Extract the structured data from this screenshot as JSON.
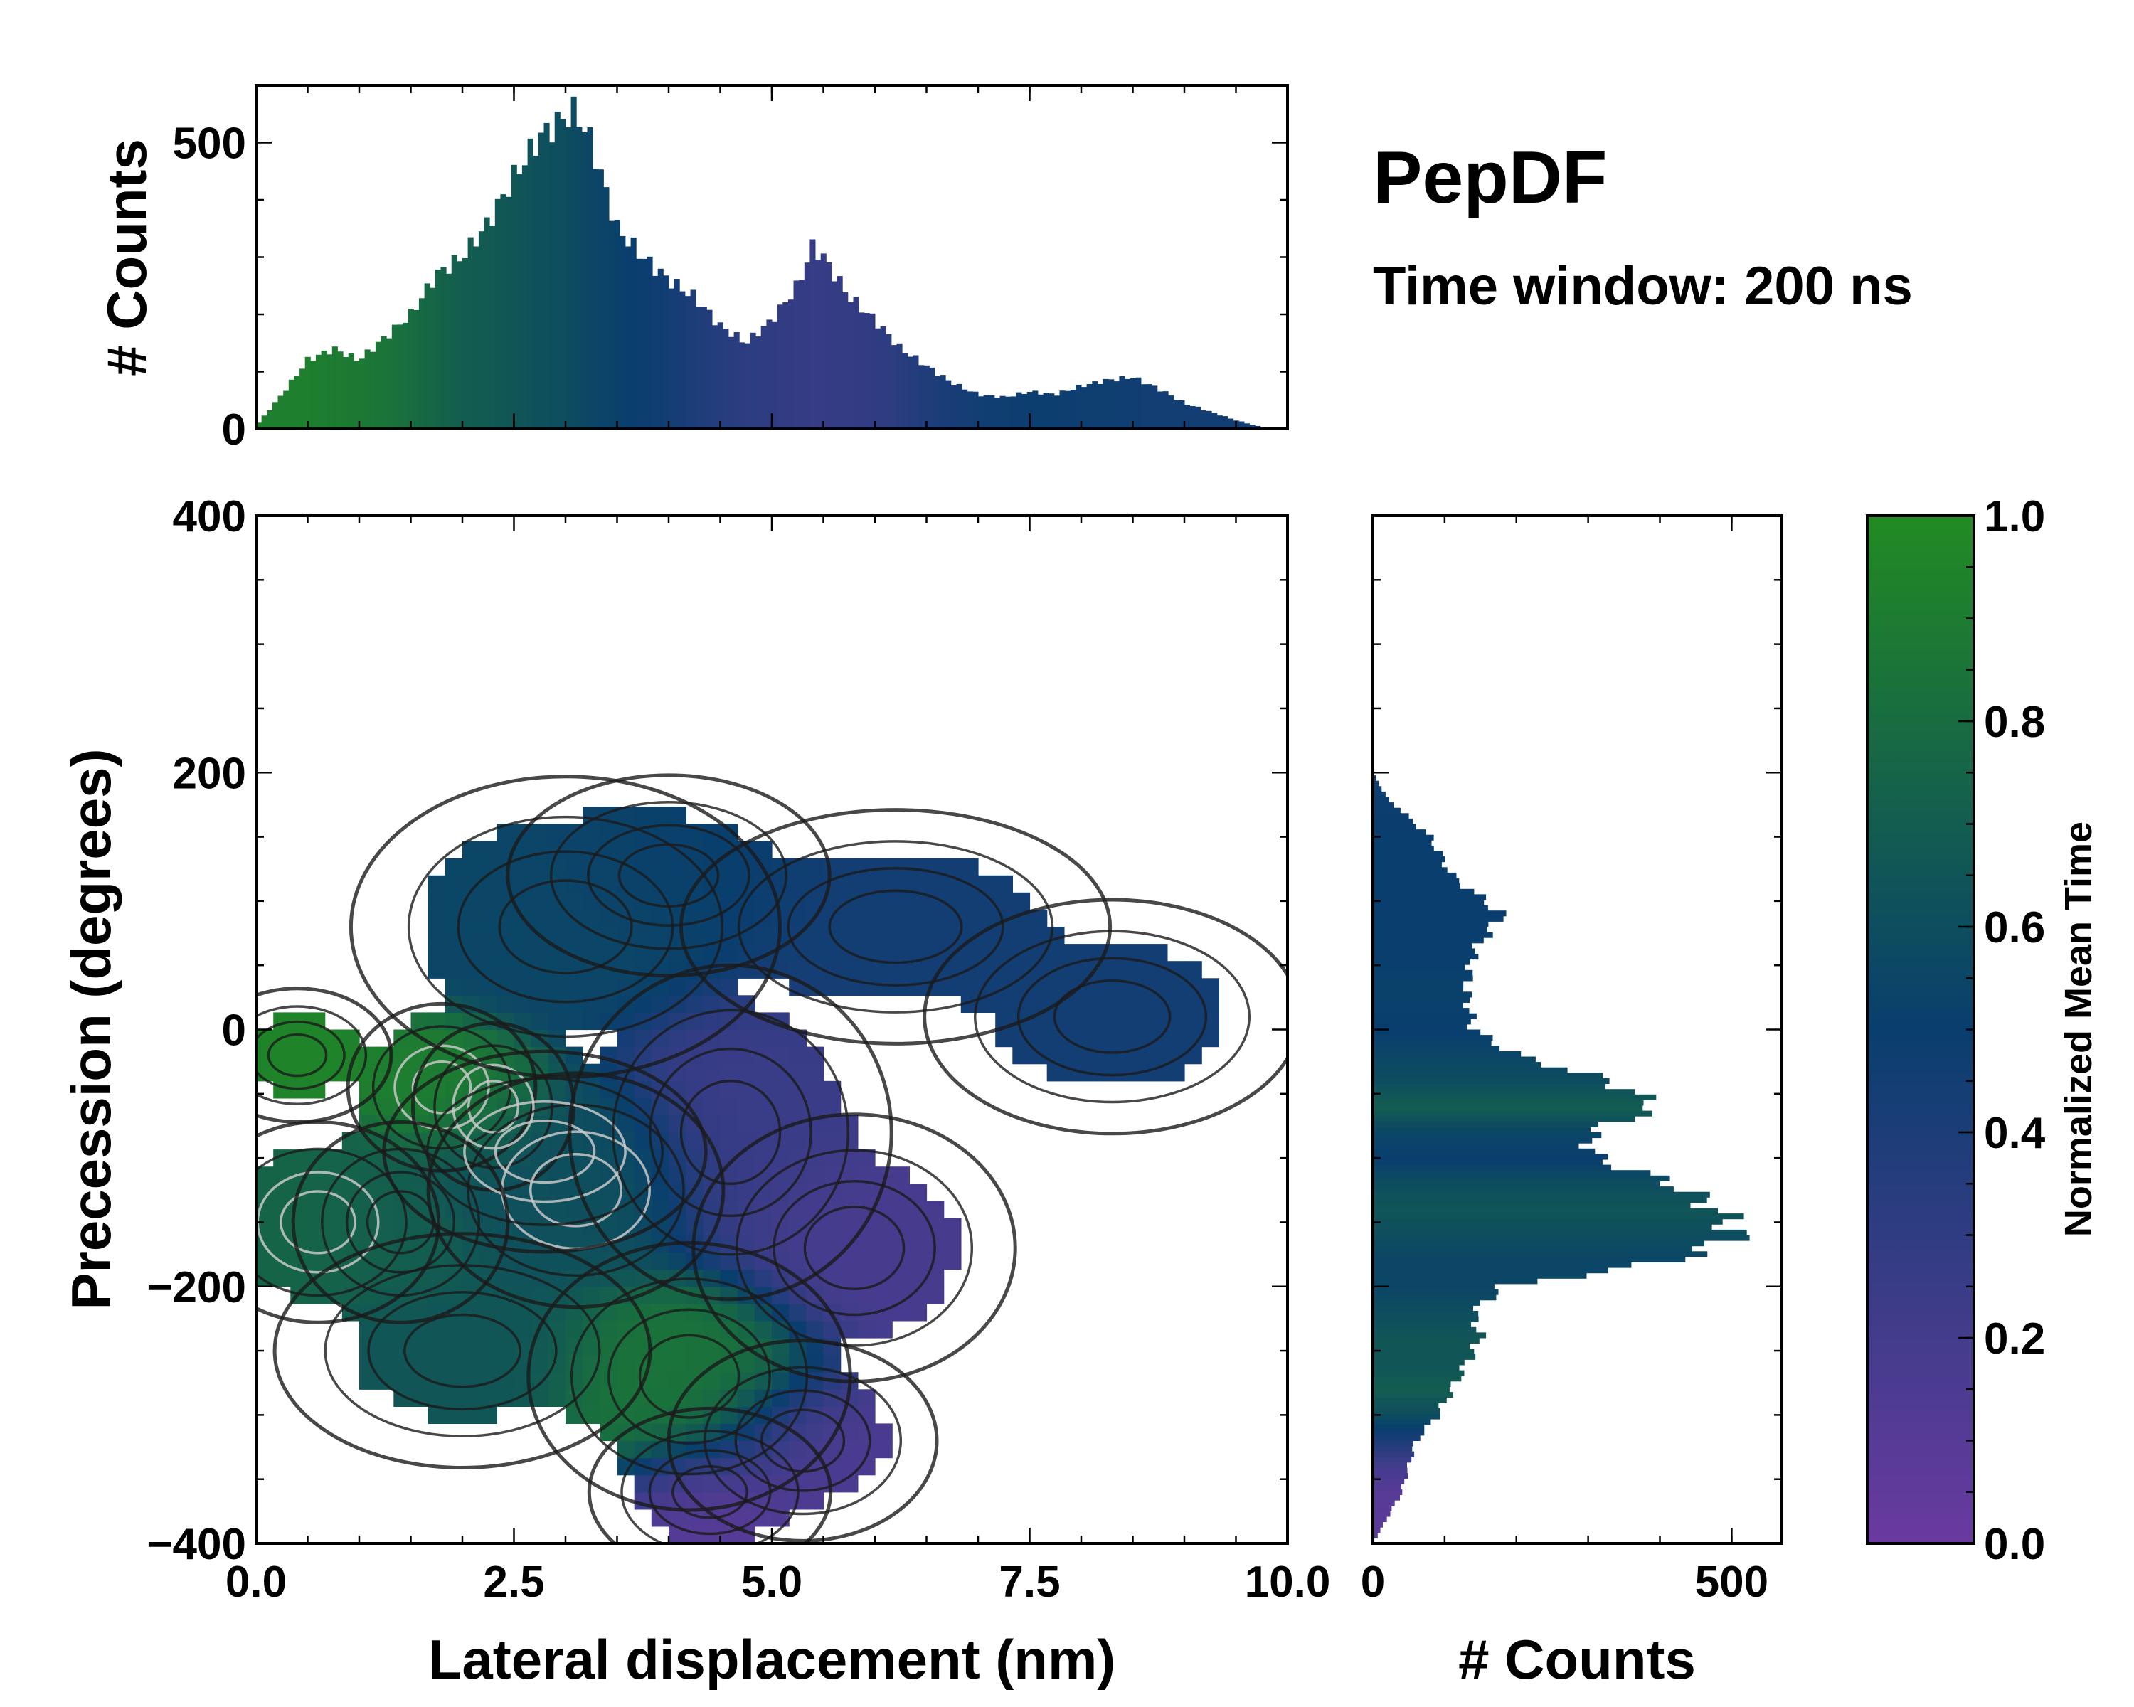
{
  "title": "PepDF",
  "subtitle": "Time window: 200 ns",
  "colors": {
    "cmap_low": "#6a3aa0",
    "cmap_mid": "#093e6e",
    "cmap_high": "#228b22",
    "contour": "#1a1a1a",
    "contour_inner": "#c8c8c8"
  },
  "chart_data": [
    {
      "type": "heatmap",
      "name": "joint-distribution",
      "xlabel": "Lateral displacement (nm)",
      "ylabel": "Precession (degrees)",
      "xlim": [
        0,
        10
      ],
      "ylim": [
        -400,
        400
      ],
      "xticks": [
        0,
        2.5,
        5,
        7.5,
        10
      ],
      "xtick_labels": [
        "0.0",
        "2.5",
        "5.0",
        "7.5",
        "10.0"
      ],
      "yticks": [
        -400,
        -200,
        0,
        200,
        400
      ],
      "ytick_labels": [
        "−400",
        "−200",
        "0",
        "200",
        "400"
      ],
      "color_meaning": "Normalized Mean Time",
      "clusters": [
        {
          "x": 1.8,
          "y": -45,
          "sx": 0.35,
          "sy": 25,
          "w": 1.0,
          "t": 0.92
        },
        {
          "x": 2.3,
          "y": -60,
          "sx": 0.3,
          "sy": 25,
          "w": 0.9,
          "t": 0.85
        },
        {
          "x": 3.1,
          "y": -125,
          "sx": 0.55,
          "sy": 35,
          "w": 1.3,
          "t": 0.62
        },
        {
          "x": 2.8,
          "y": -95,
          "sx": 0.6,
          "sy": 30,
          "w": 0.9,
          "t": 0.6
        },
        {
          "x": 0.6,
          "y": -150,
          "sx": 0.45,
          "sy": 30,
          "w": 0.8,
          "t": 0.75
        },
        {
          "x": 1.4,
          "y": -150,
          "sx": 0.4,
          "sy": 30,
          "w": 0.7,
          "t": 0.7
        },
        {
          "x": 0.4,
          "y": -20,
          "sx": 0.35,
          "sy": 20,
          "w": 0.4,
          "t": 0.95
        },
        {
          "x": 3.0,
          "y": 80,
          "sx": 0.8,
          "sy": 45,
          "w": 0.55,
          "t": 0.55
        },
        {
          "x": 4.0,
          "y": 120,
          "sx": 0.6,
          "sy": 30,
          "w": 0.3,
          "t": 0.5
        },
        {
          "x": 4.6,
          "y": -80,
          "sx": 0.6,
          "sy": 50,
          "w": 0.6,
          "t": 0.25
        },
        {
          "x": 6.2,
          "y": 80,
          "sx": 0.8,
          "sy": 35,
          "w": 0.45,
          "t": 0.45
        },
        {
          "x": 8.3,
          "y": 10,
          "sx": 0.7,
          "sy": 35,
          "w": 0.4,
          "t": 0.45
        },
        {
          "x": 5.8,
          "y": -170,
          "sx": 0.6,
          "sy": 40,
          "w": 0.45,
          "t": 0.18
        },
        {
          "x": 4.2,
          "y": -270,
          "sx": 0.6,
          "sy": 40,
          "w": 0.6,
          "t": 0.85
        },
        {
          "x": 5.3,
          "y": -320,
          "sx": 0.5,
          "sy": 30,
          "w": 0.4,
          "t": 0.15
        },
        {
          "x": 4.4,
          "y": -360,
          "sx": 0.45,
          "sy": 25,
          "w": 0.35,
          "t": 0.08
        },
        {
          "x": 2.0,
          "y": -250,
          "sx": 0.7,
          "sy": 35,
          "w": 0.35,
          "t": 0.65
        }
      ]
    },
    {
      "type": "bar",
      "name": "top-marginal-histogram",
      "ylabel": "# Counts",
      "xlim": [
        0,
        10
      ],
      "ylim": [
        0,
        600
      ],
      "yticks": [
        0,
        500
      ],
      "ytick_labels": [
        "0",
        "500"
      ],
      "x": [
        0.0,
        0.25,
        0.5,
        0.75,
        1.0,
        1.25,
        1.5,
        1.75,
        2.0,
        2.25,
        2.5,
        2.75,
        3.0,
        3.1,
        3.25,
        3.5,
        3.75,
        4.0,
        4.25,
        4.5,
        4.75,
        5.0,
        5.25,
        5.4,
        5.5,
        5.75,
        6.0,
        6.25,
        6.5,
        6.75,
        7.0,
        7.25,
        7.5,
        7.75,
        8.0,
        8.25,
        8.5,
        8.75,
        9.0,
        9.25,
        9.5,
        9.75,
        10.0
      ],
      "values": [
        5,
        60,
        120,
        140,
        120,
        160,
        200,
        270,
        300,
        360,
        440,
        510,
        545,
        555,
        500,
        350,
        300,
        260,
        230,
        180,
        150,
        190,
        250,
        320,
        300,
        230,
        190,
        140,
        110,
        80,
        60,
        55,
        65,
        60,
        75,
        85,
        90,
        70,
        45,
        30,
        15,
        3,
        0
      ],
      "time_color": [
        0.92,
        0.92,
        0.92,
        0.9,
        0.88,
        0.85,
        0.8,
        0.75,
        0.7,
        0.68,
        0.65,
        0.62,
        0.6,
        0.58,
        0.55,
        0.52,
        0.48,
        0.45,
        0.4,
        0.35,
        0.32,
        0.3,
        0.28,
        0.27,
        0.27,
        0.28,
        0.3,
        0.33,
        0.38,
        0.42,
        0.45,
        0.47,
        0.48,
        0.48,
        0.47,
        0.47,
        0.46,
        0.45,
        0.45,
        0.45,
        0.45,
        0.45,
        0.45
      ]
    },
    {
      "type": "bar",
      "name": "right-marginal-histogram",
      "orientation": "horizontal",
      "xlabel": "# Counts",
      "xlim": [
        0,
        570
      ],
      "ylim": [
        -400,
        400
      ],
      "xticks": [
        0,
        500
      ],
      "xtick_labels": [
        "0",
        "500"
      ],
      "y": [
        200,
        180,
        150,
        120,
        90,
        60,
        30,
        0,
        -20,
        -40,
        -60,
        -80,
        -100,
        -120,
        -140,
        -160,
        -180,
        -200,
        -220,
        -240,
        -260,
        -280,
        -300,
        -320,
        -340,
        -360,
        -380,
        -400
      ],
      "values": [
        0,
        20,
        80,
        110,
        180,
        140,
        130,
        140,
        200,
        330,
        400,
        300,
        310,
        420,
        480,
        510,
        420,
        180,
        140,
        150,
        130,
        110,
        90,
        60,
        50,
        40,
        20,
        0
      ],
      "time_color": [
        0.45,
        0.48,
        0.5,
        0.5,
        0.5,
        0.5,
        0.52,
        0.5,
        0.55,
        0.6,
        0.7,
        0.55,
        0.5,
        0.6,
        0.65,
        0.6,
        0.55,
        0.55,
        0.6,
        0.65,
        0.65,
        0.7,
        0.6,
        0.4,
        0.2,
        0.1,
        0.08,
        0.08
      ]
    },
    {
      "type": "colorbar",
      "name": "colorbar",
      "label": "Normalized Mean Time",
      "range": [
        0,
        1
      ],
      "ticks": [
        0,
        0.2,
        0.4,
        0.6,
        0.8,
        1.0
      ],
      "tick_labels": [
        "0.0",
        "0.2",
        "0.4",
        "0.6",
        "0.8",
        "1.0"
      ]
    }
  ]
}
